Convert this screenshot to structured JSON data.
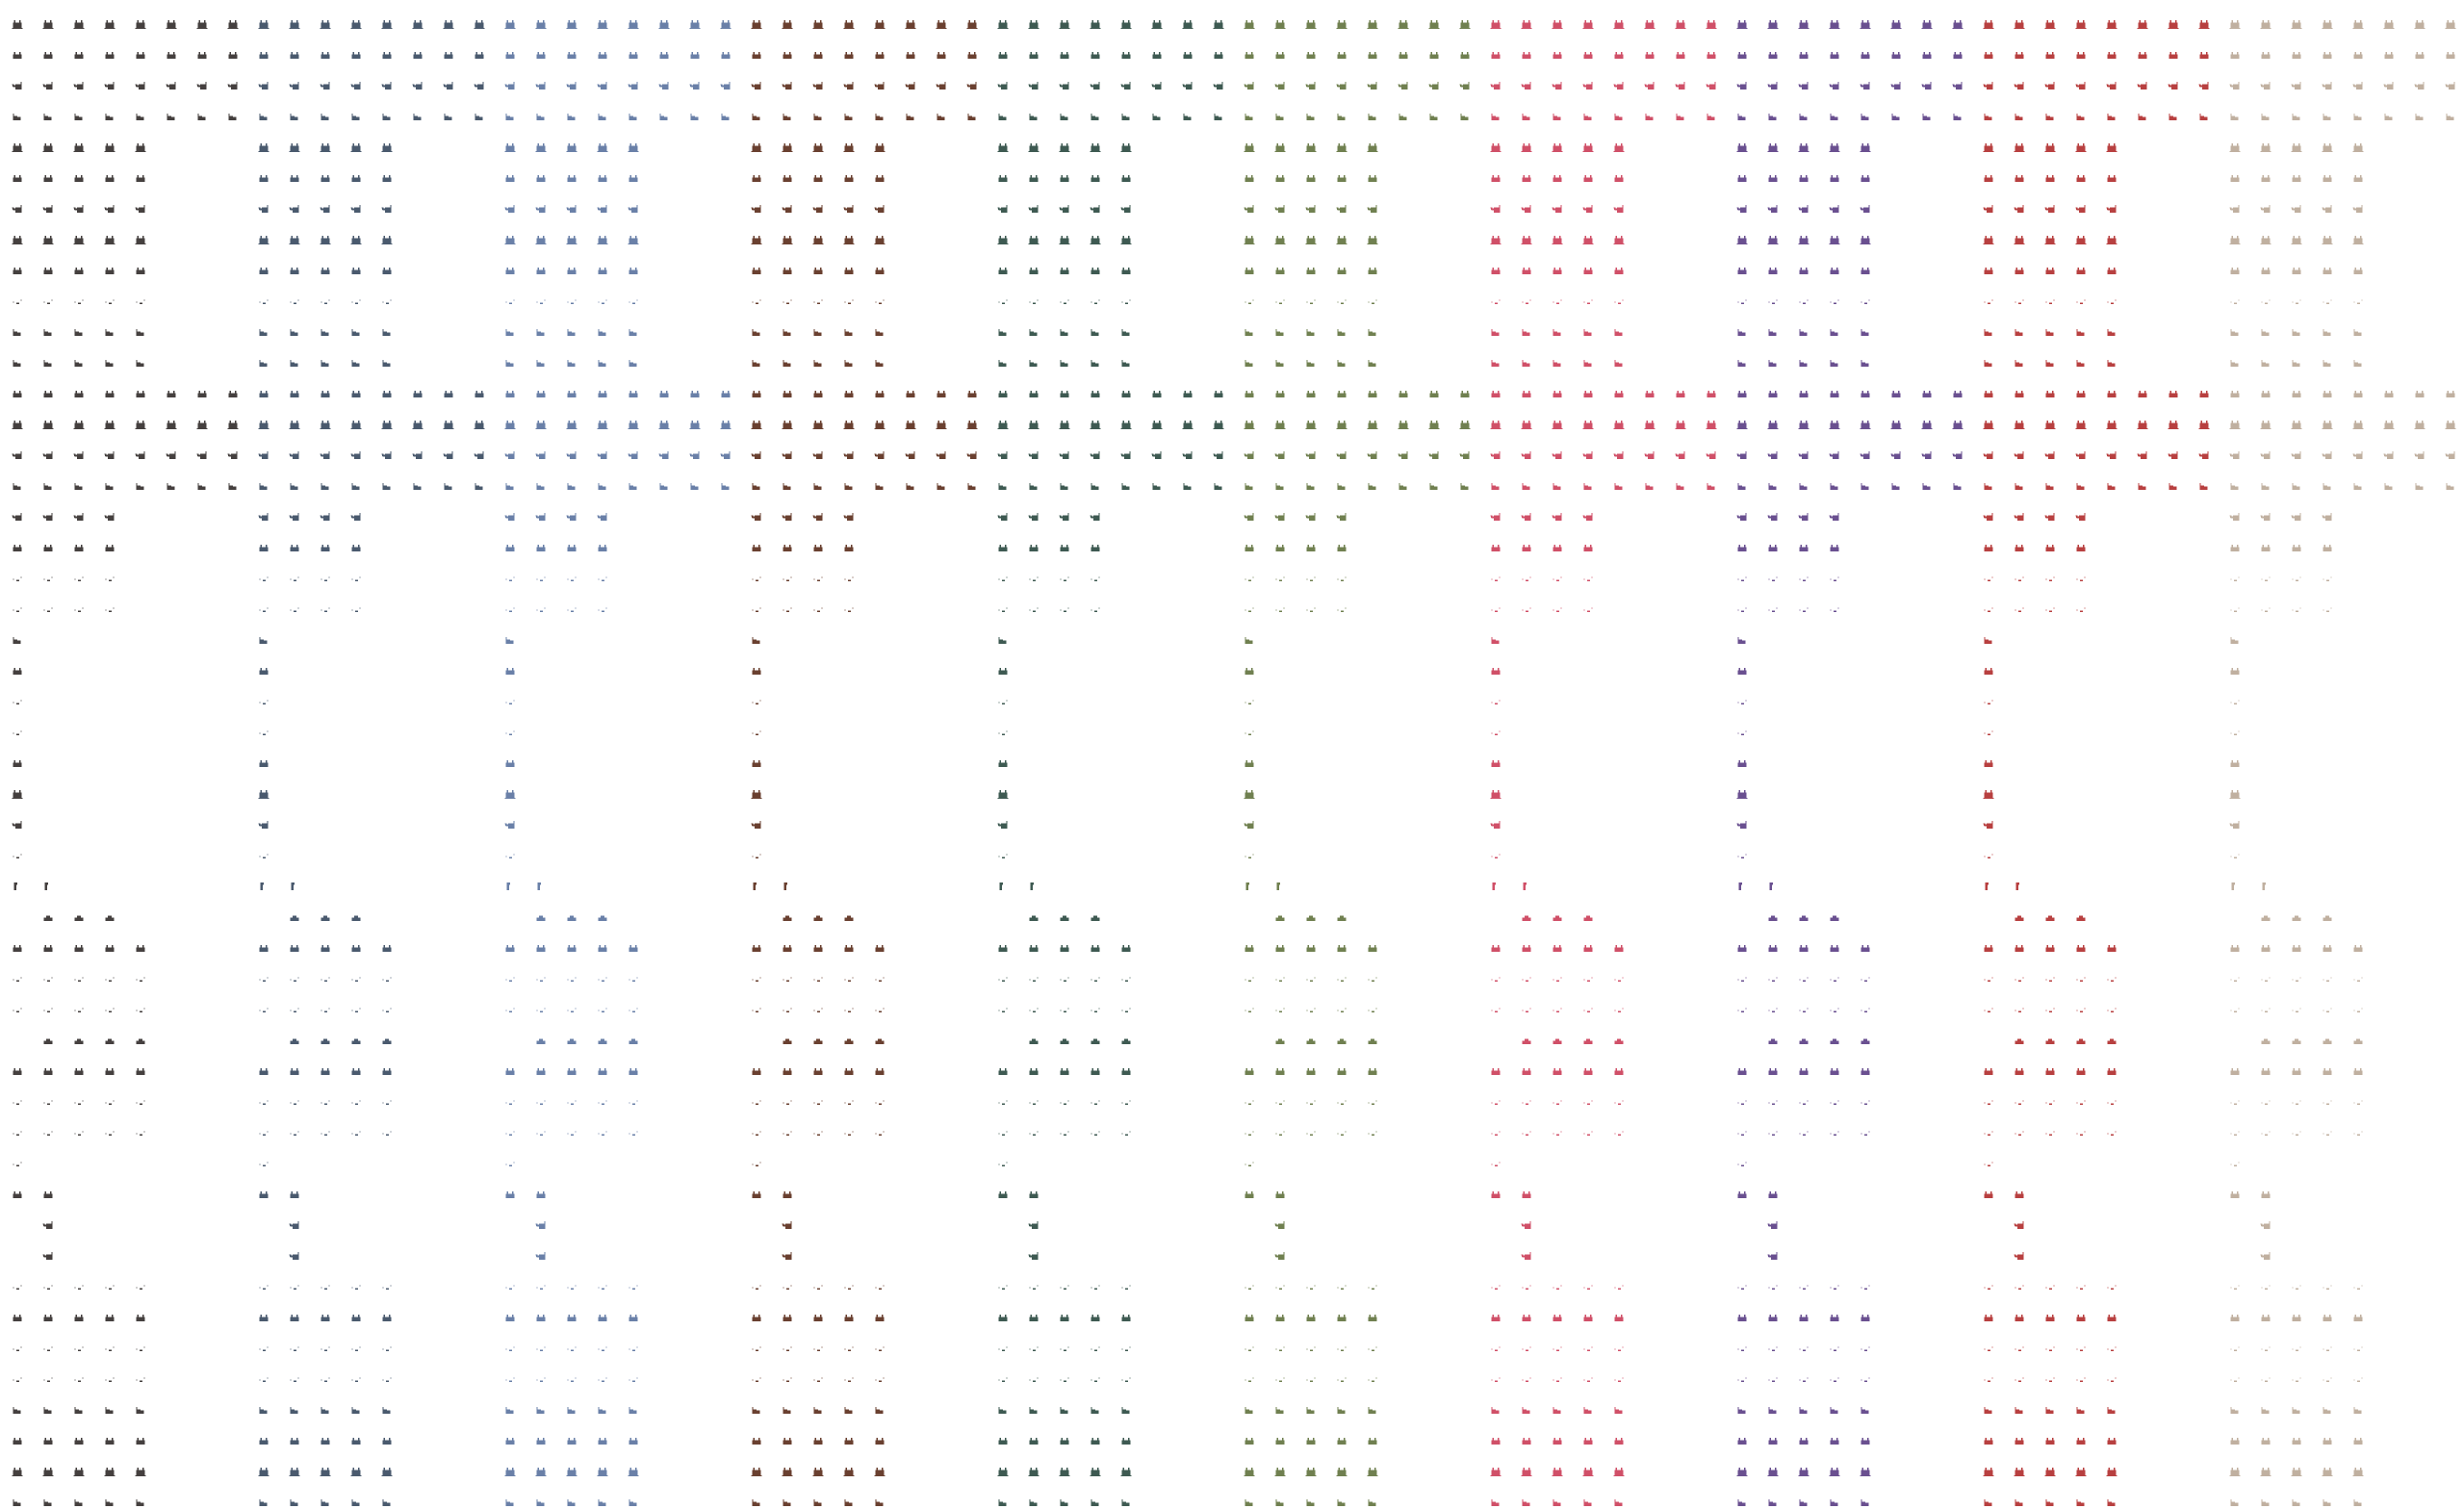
{
  "sprite_sheet": {
    "subject": "cat",
    "variants": [
      {
        "name": "dark-gray",
        "color": "#45403f"
      },
      {
        "name": "slate",
        "color": "#4a5a6e"
      },
      {
        "name": "blue",
        "color": "#6a80a8"
      },
      {
        "name": "brown",
        "color": "#6a4030"
      },
      {
        "name": "teal",
        "color": "#3e5a52"
      },
      {
        "name": "olive",
        "color": "#708050"
      },
      {
        "name": "pink",
        "color": "#d05068"
      },
      {
        "name": "purple",
        "color": "#6a5090"
      },
      {
        "name": "red",
        "color": "#b84040"
      },
      {
        "name": "beige",
        "color": "#c0b0a0"
      }
    ],
    "columns_per_variant": 8,
    "rows": [
      {
        "pose": "sit",
        "cols": [
          0,
          1,
          2,
          3,
          4,
          5,
          6,
          7
        ]
      },
      {
        "pose": "loaf",
        "cols": [
          0,
          1,
          2,
          3,
          4,
          5,
          6,
          7
        ]
      },
      {
        "pose": "turn",
        "cols": [
          0,
          1,
          2,
          3,
          4,
          5,
          6,
          7
        ]
      },
      {
        "pose": "side",
        "cols": [
          0,
          1,
          2,
          3,
          4,
          5,
          6,
          7
        ]
      },
      {
        "pose": "sit",
        "cols": [
          0,
          1,
          2,
          3,
          4
        ]
      },
      {
        "pose": "loaf",
        "cols": [
          0,
          1,
          2,
          3,
          4
        ]
      },
      {
        "pose": "turn",
        "cols": [
          0,
          1,
          2,
          3,
          4
        ]
      },
      {
        "pose": "sit",
        "cols": [
          0,
          1,
          2,
          3,
          4
        ]
      },
      {
        "pose": "loaf",
        "cols": [
          0,
          1,
          2,
          3,
          4
        ]
      },
      {
        "pose": "dots",
        "cols": [
          0,
          1,
          2,
          3,
          4
        ]
      },
      {
        "pose": "side",
        "cols": [
          0,
          1,
          2,
          3,
          4
        ]
      },
      {
        "pose": "side",
        "cols": [
          0,
          1,
          2,
          3,
          4
        ]
      },
      {
        "pose": "loaf",
        "cols": [
          0,
          1,
          2,
          3,
          4,
          5,
          6,
          7
        ]
      },
      {
        "pose": "sit",
        "cols": [
          0,
          1,
          2,
          3,
          4,
          5,
          6,
          7
        ]
      },
      {
        "pose": "turn",
        "cols": [
          0,
          1,
          2,
          3,
          4,
          5,
          6,
          7
        ]
      },
      {
        "pose": "side",
        "cols": [
          0,
          1,
          2,
          3,
          4,
          5,
          6,
          7
        ]
      },
      {
        "pose": "turn",
        "cols": [
          0,
          1,
          2,
          3
        ]
      },
      {
        "pose": "loaf",
        "cols": [
          0,
          1,
          2,
          3
        ]
      },
      {
        "pose": "dots",
        "cols": [
          0,
          1,
          2,
          3
        ]
      },
      {
        "pose": "dots",
        "cols": [
          0,
          1,
          2,
          3
        ]
      },
      {
        "pose": "side",
        "cols": [
          0
        ]
      },
      {
        "pose": "loaf",
        "cols": [
          0
        ]
      },
      {
        "pose": "dots",
        "cols": [
          0
        ]
      },
      {
        "pose": "dots",
        "cols": [
          0
        ]
      },
      {
        "pose": "loaf",
        "cols": [
          0
        ]
      },
      {
        "pose": "sit",
        "cols": [
          0
        ]
      },
      {
        "pose": "turn",
        "cols": [
          0
        ]
      },
      {
        "pose": "dots",
        "cols": [
          0
        ]
      },
      {
        "pose": "leap",
        "cols": [
          0,
          1
        ]
      },
      {
        "pose": "mound",
        "cols": [
          1,
          2,
          3
        ]
      },
      {
        "pose": "loaf",
        "cols": [
          0,
          1,
          2,
          3,
          4
        ]
      },
      {
        "pose": "dots",
        "cols": [
          0,
          1,
          2,
          3,
          4
        ]
      },
      {
        "pose": "dots",
        "cols": [
          0,
          1,
          2,
          3,
          4
        ]
      },
      {
        "pose": "mound",
        "cols": [
          1,
          2,
          3,
          4
        ]
      },
      {
        "pose": "loaf",
        "cols": [
          0,
          1,
          2,
          3,
          4
        ]
      },
      {
        "pose": "dots",
        "cols": [
          0,
          1,
          2,
          3,
          4
        ]
      },
      {
        "pose": "dots",
        "cols": [
          0,
          1,
          2,
          3,
          4
        ]
      },
      {
        "pose": "dots",
        "cols": [
          0
        ]
      },
      {
        "pose": "loaf",
        "cols": [
          0,
          1
        ]
      },
      {
        "pose": "turn",
        "cols": [
          1
        ]
      },
      {
        "pose": "turn",
        "cols": [
          1
        ]
      },
      {
        "pose": "dots",
        "cols": [
          0,
          1,
          2,
          3,
          4
        ]
      },
      {
        "pose": "loaf",
        "cols": [
          0,
          1,
          2,
          3,
          4
        ]
      },
      {
        "pose": "dots",
        "cols": [
          0,
          1,
          2,
          3,
          4
        ]
      },
      {
        "pose": "dots",
        "cols": [
          0,
          1,
          2,
          3,
          4
        ]
      },
      {
        "pose": "side",
        "cols": [
          0,
          1,
          2,
          3,
          4
        ]
      },
      {
        "pose": "loaf",
        "cols": [
          0,
          1,
          2,
          3,
          4
        ]
      },
      {
        "pose": "sit",
        "cols": [
          0,
          1,
          2,
          3,
          4
        ]
      },
      {
        "pose": "side",
        "cols": [
          0,
          1,
          2,
          3,
          4
        ]
      }
    ]
  }
}
